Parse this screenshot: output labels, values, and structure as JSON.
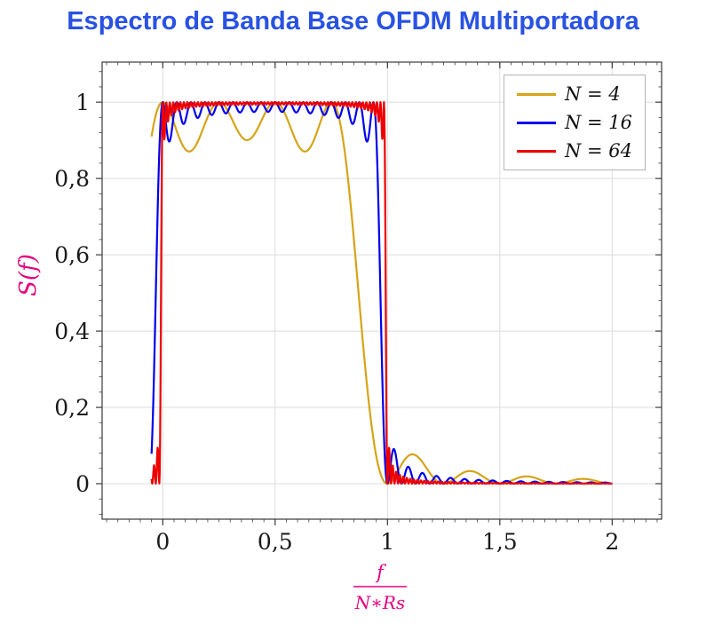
{
  "title": "Espectro de Banda Base OFDM Multiportadora",
  "title_color": "#2952e3",
  "chart_data": {
    "type": "line",
    "title": "Espectro de Banda Base OFDM Multiportadora",
    "ylabel": "S(f)",
    "xlabel_numerator": "f",
    "xlabel_denominator": "N∗Rs",
    "axis_label_color": "#e5007d",
    "xlim": [
      -0.27,
      2.22
    ],
    "ylim": [
      -0.093,
      1.105
    ],
    "x_ticks": [
      0,
      0.5,
      1,
      1.5,
      2
    ],
    "x_tick_labels": [
      "0",
      "0,5",
      "1",
      "1,5",
      "2"
    ],
    "y_ticks": [
      0,
      0.2,
      0.4,
      0.6,
      0.8,
      1
    ],
    "y_tick_labels": [
      "0",
      "0,2",
      "0,4",
      "0,6",
      "0,8",
      "1"
    ],
    "x_minor_step": 0.05,
    "y_minor_step": 0.04,
    "grid": true,
    "grid_color": "#dcdcdc",
    "legend_position": "top-right",
    "series": [
      {
        "name": "N = 4",
        "color": "#d6a418",
        "model": "ofdm_sum_sinc2",
        "subcarriers": 4,
        "x_start": -0.05,
        "x_end": 2.0
      },
      {
        "name": "N = 16",
        "color": "#0000ee",
        "model": "ofdm_sum_sinc2",
        "subcarriers": 16,
        "x_start": -0.05,
        "x_end": 2.0
      },
      {
        "name": "N = 64",
        "color": "#ee0000",
        "model": "ofdm_sum_sinc2",
        "subcarriers": 64,
        "x_start": -0.05,
        "x_end": 2.0
      }
    ],
    "model_description": "S(x) = sum_{k=0..N-1} sinc^2(N*x - k), with sinc(u)=sin(pi*u)/(pi*u); passband ~[0,1] of f/(N*Rs), plateau ripple dipping to ~0.88 near band edges, sidelobes beyond f/(N*Rs)=1",
    "samples_per_series": 1300
  }
}
